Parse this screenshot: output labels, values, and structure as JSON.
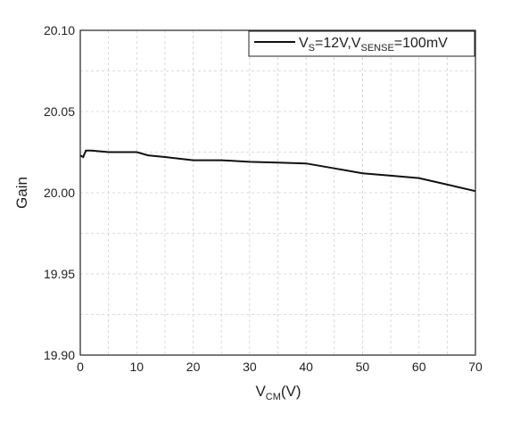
{
  "chart_data": {
    "type": "line",
    "xlim": [
      0,
      70
    ],
    "ylim": [
      19.9,
      20.1
    ],
    "x_ticks": [
      "0",
      "10",
      "20",
      "30",
      "40",
      "50",
      "60",
      "70"
    ],
    "y_ticks": [
      "19.90",
      "19.95",
      "20.00",
      "20.05",
      "20.10"
    ],
    "x_tick_values": [
      0,
      10,
      20,
      30,
      40,
      50,
      60,
      70
    ],
    "y_tick_values": [
      19.9,
      19.95,
      20.0,
      20.05,
      20.1
    ],
    "grid": true,
    "grid_style": "dashed",
    "ylabel": "Gain",
    "xlabel": {
      "main": "V",
      "sub": "CM",
      "unit": "(V)"
    },
    "legend_position": "top-right",
    "series": [
      {
        "legend": {
          "p1": "V",
          "s1": "S",
          "p2": "=12V,V",
          "s2": "SENSE",
          "p3": "=100mV"
        },
        "color": "#111111",
        "x": [
          0,
          0.5,
          1,
          2,
          5,
          10,
          12,
          15,
          20,
          25,
          30,
          35,
          40,
          45,
          50,
          55,
          60,
          65,
          70
        ],
        "y": [
          20.023,
          20.022,
          20.026,
          20.026,
          20.025,
          20.025,
          20.023,
          20.022,
          20.02,
          20.02,
          20.019,
          20.0185,
          20.018,
          20.015,
          20.012,
          20.0105,
          20.009,
          20.005,
          20.001
        ]
      }
    ]
  }
}
